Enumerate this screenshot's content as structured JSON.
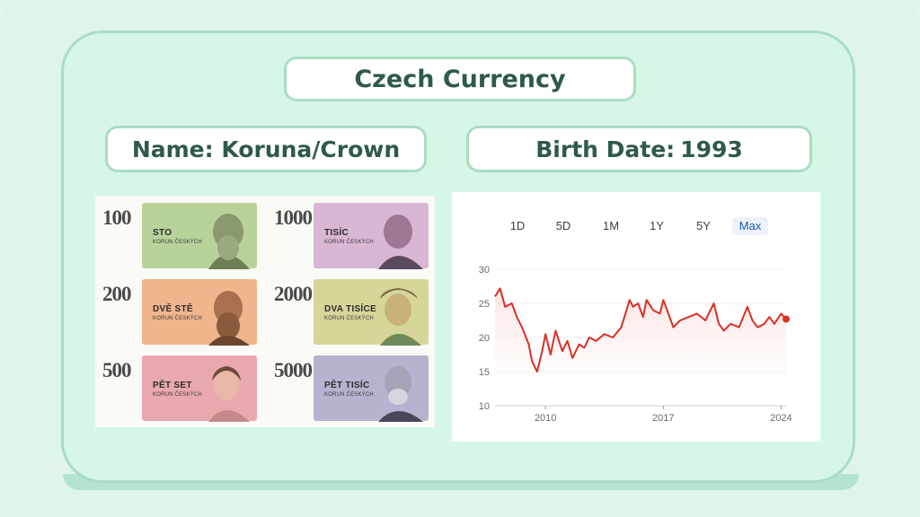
{
  "title": "Czech Currency",
  "name_label": "Name:",
  "name_value": "Koruna/Crown",
  "birth_label": "Birth Date:",
  "birth_value": "1993",
  "banknotes": [
    {
      "denomination": "100",
      "word": "STO",
      "sub": "KORUN ČESKÝCH",
      "color": "#b8d39a"
    },
    {
      "denomination": "1000",
      "word": "TISÍC",
      "sub": "KORUN ČESKÝCH",
      "color": "#d9b6d4"
    },
    {
      "denomination": "200",
      "word": "DVĚ STĚ",
      "sub": "KORUN ČESKÝCH",
      "color": "#f0b58c"
    },
    {
      "denomination": "2000",
      "word": "DVA TISÍCE",
      "sub": "KORUN ČESKÝCH",
      "color": "#d6d69a"
    },
    {
      "denomination": "500",
      "word": "PĚT SET",
      "sub": "KORUN ČESKÝCH",
      "color": "#e9a8ad"
    },
    {
      "denomination": "5000",
      "word": "PĚT TISÍC",
      "sub": "KORUN ČESKÝCH",
      "color": "#b6b3cf"
    }
  ],
  "range_tabs": [
    "1D",
    "5D",
    "1M",
    "1Y",
    "5Y",
    "Max"
  ],
  "active_tab": "Max",
  "colors": {
    "line": "#d93025",
    "fill": "#fbe3e0",
    "accent": "#2f5a49",
    "border": "#a9dcc4"
  },
  "chart_data": {
    "type": "area",
    "x": [
      2007.0,
      2007.3,
      2007.6,
      2008.0,
      2008.3,
      2008.6,
      2009.0,
      2009.2,
      2009.5,
      2009.8,
      2010.0,
      2010.3,
      2010.6,
      2011.0,
      2011.3,
      2011.6,
      2012.0,
      2012.3,
      2012.6,
      2013.0,
      2013.5,
      2014.0,
      2014.5,
      2015.0,
      2015.2,
      2015.5,
      2015.8,
      2016.0,
      2016.4,
      2016.8,
      2017.0,
      2017.3,
      2017.6,
      2018.0,
      2018.5,
      2019.0,
      2019.5,
      2020.0,
      2020.3,
      2020.6,
      2021.0,
      2021.5,
      2022.0,
      2022.3,
      2022.6,
      2023.0,
      2023.3,
      2023.6,
      2024.0,
      2024.3
    ],
    "y": [
      26.0,
      27.2,
      24.5,
      25.0,
      23.0,
      21.5,
      19.0,
      16.5,
      15.0,
      18.0,
      20.5,
      17.5,
      21.0,
      18.0,
      19.5,
      17.0,
      19.0,
      18.5,
      20.0,
      19.5,
      20.5,
      20.0,
      21.5,
      25.5,
      24.5,
      25.0,
      23.0,
      25.5,
      24.0,
      23.5,
      25.5,
      23.5,
      21.5,
      22.5,
      23.0,
      23.5,
      22.5,
      25.0,
      22.0,
      21.0,
      22.0,
      21.5,
      24.5,
      22.5,
      21.5,
      22.0,
      23.0,
      22.0,
      23.5,
      22.7
    ],
    "xticks": [
      "2010",
      "2017",
      "2024"
    ],
    "xtick_values": [
      2010,
      2017,
      2024
    ],
    "yticks": [
      "10",
      "15",
      "20",
      "25",
      "30"
    ],
    "ytick_values": [
      10,
      15,
      20,
      25,
      30
    ],
    "xlim": [
      2007,
      2024.3
    ],
    "ylim": [
      10,
      30
    ],
    "grid": true
  }
}
